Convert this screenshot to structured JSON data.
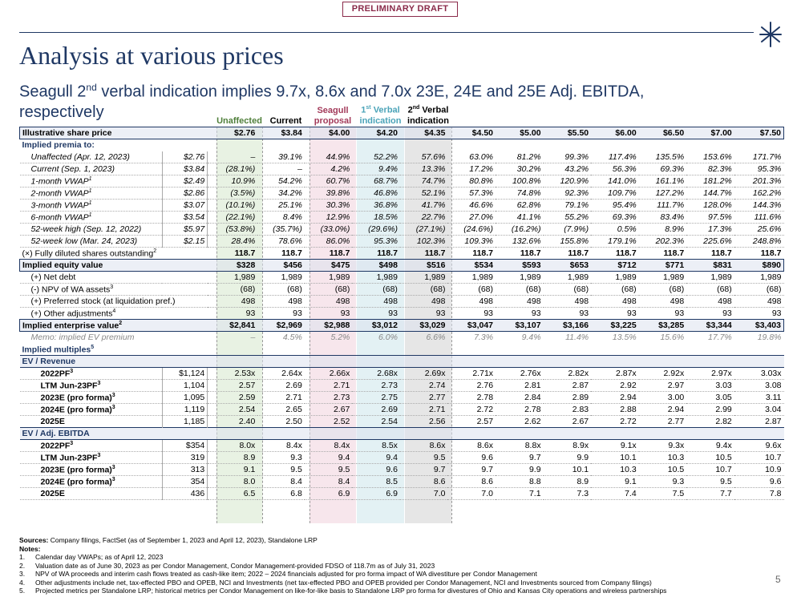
{
  "draft_label": "PRELIMINARY DRAFT",
  "title": "Analysis at various prices",
  "subtitle_pre": "Seagull 2",
  "subtitle_sup": "nd",
  "subtitle_post": " verbal indication implies 9.7x, 8.6x and 7.0x 23E, 24E and 25E Adj. EBITDA, respectively",
  "column_headers": {
    "unaffected": "Unaffected",
    "current": "Current",
    "seagull": "Seagull proposal",
    "verbal1_pre": "1",
    "verbal1_sup": "st",
    "verbal1_post": " Verbal indication",
    "verbal2_pre": "2",
    "verbal2_sup": "nd",
    "verbal2_post": " Verbal indication"
  },
  "share_price": {
    "label": "Illustrative share price",
    "values": [
      "$2.76",
      "$3.84",
      "$4.00",
      "$4.20",
      "$4.35",
      "$4.50",
      "$5.00",
      "$5.50",
      "$6.00",
      "$6.50",
      "$7.00",
      "$7.50"
    ]
  },
  "premia": {
    "section_label": "Implied premia to:",
    "rows": [
      {
        "label": "Unaffected (Apr. 12, 2023)",
        "sup": "",
        "ref": "$2.76",
        "values": [
          "–",
          "39.1%",
          "44.9%",
          "52.2%",
          "57.6%",
          "63.0%",
          "81.2%",
          "99.3%",
          "117.4%",
          "135.5%",
          "153.6%",
          "171.7%"
        ]
      },
      {
        "label": "Current (Sep. 1, 2023)",
        "sup": "",
        "ref": "$3.84",
        "values": [
          "(28.1%)",
          "–",
          "4.2%",
          "9.4%",
          "13.3%",
          "17.2%",
          "30.2%",
          "43.2%",
          "56.3%",
          "69.3%",
          "82.3%",
          "95.3%"
        ]
      },
      {
        "label": "1-month VWAP",
        "sup": "1",
        "ref": "$2.49",
        "values": [
          "10.9%",
          "54.2%",
          "60.7%",
          "68.7%",
          "74.7%",
          "80.8%",
          "100.8%",
          "120.9%",
          "141.0%",
          "161.1%",
          "181.2%",
          "201.3%"
        ]
      },
      {
        "label": "2-month VWAP",
        "sup": "1",
        "ref": "$2.86",
        "values": [
          "(3.5%)",
          "34.2%",
          "39.8%",
          "46.8%",
          "52.1%",
          "57.3%",
          "74.8%",
          "92.3%",
          "109.7%",
          "127.2%",
          "144.7%",
          "162.2%"
        ]
      },
      {
        "label": "3-month VWAP",
        "sup": "1",
        "ref": "$3.07",
        "values": [
          "(10.1%)",
          "25.1%",
          "30.3%",
          "36.8%",
          "41.7%",
          "46.6%",
          "62.8%",
          "79.1%",
          "95.4%",
          "111.7%",
          "128.0%",
          "144.3%"
        ]
      },
      {
        "label": "6-month VWAP",
        "sup": "1",
        "ref": "$3.54",
        "values": [
          "(22.1%)",
          "8.4%",
          "12.9%",
          "18.5%",
          "22.7%",
          "27.0%",
          "41.1%",
          "55.2%",
          "69.3%",
          "83.4%",
          "97.5%",
          "111.6%"
        ]
      },
      {
        "label": "52-week high (Sep. 12, 2022)",
        "sup": "",
        "ref": "$5.97",
        "values": [
          "(53.8%)",
          "(35.7%)",
          "(33.0%)",
          "(29.6%)",
          "(27.1%)",
          "(24.6%)",
          "(16.2%)",
          "(7.9%)",
          "0.5%",
          "8.9%",
          "17.3%",
          "25.6%"
        ]
      },
      {
        "label": "52-week low (Mar. 24, 2023)",
        "sup": "",
        "ref": "$2.15",
        "values": [
          "28.4%",
          "78.6%",
          "86.0%",
          "95.3%",
          "102.3%",
          "109.3%",
          "132.6%",
          "155.8%",
          "179.1%",
          "202.3%",
          "225.6%",
          "248.8%"
        ]
      }
    ]
  },
  "shares": {
    "label": "(×) Fully diluted shares outstanding",
    "sup": "2",
    "values": [
      "118.7",
      "118.7",
      "118.7",
      "118.7",
      "118.7",
      "118.7",
      "118.7",
      "118.7",
      "118.7",
      "118.7",
      "118.7",
      "118.7"
    ]
  },
  "equity_value": {
    "label": "Implied equity value",
    "values": [
      "$328",
      "$456",
      "$475",
      "$498",
      "$516",
      "$534",
      "$593",
      "$653",
      "$712",
      "$771",
      "$831",
      "$890"
    ]
  },
  "adjustments": [
    {
      "label": "(+) Net debt",
      "sup": "",
      "values": [
        "1,989",
        "1,989",
        "1,989",
        "1,989",
        "1,989",
        "1,989",
        "1,989",
        "1,989",
        "1,989",
        "1,989",
        "1,989",
        "1,989"
      ]
    },
    {
      "label": "(-)  NPV of WA assets",
      "sup": "3",
      "values": [
        "(68)",
        "(68)",
        "(68)",
        "(68)",
        "(68)",
        "(68)",
        "(68)",
        "(68)",
        "(68)",
        "(68)",
        "(68)",
        "(68)"
      ]
    },
    {
      "label": "(+) Preferred stock (at liquidation pref.)",
      "sup": "",
      "values": [
        "498",
        "498",
        "498",
        "498",
        "498",
        "498",
        "498",
        "498",
        "498",
        "498",
        "498",
        "498"
      ]
    },
    {
      "label": "(+) Other adjustments",
      "sup": "4",
      "values": [
        "93",
        "93",
        "93",
        "93",
        "93",
        "93",
        "93",
        "93",
        "93",
        "93",
        "93",
        "93"
      ]
    }
  ],
  "enterprise_value": {
    "label": "Implied enterprise value",
    "sup": "2",
    "values": [
      "$2,841",
      "$2,969",
      "$2,988",
      "$3,012",
      "$3,029",
      "$3,047",
      "$3,107",
      "$3,166",
      "$3,225",
      "$3,285",
      "$3,344",
      "$3,403"
    ]
  },
  "memo": {
    "label": "Memo: implied EV premium",
    "values": [
      "–",
      "4.5%",
      "5.2%",
      "6.0%",
      "6.6%",
      "7.3%",
      "9.4%",
      "11.4%",
      "13.5%",
      "15.6%",
      "17.7%",
      "19.8%"
    ]
  },
  "multiples_label": "Implied multiples",
  "multiples_sup": "5",
  "ev_revenue": {
    "label": "EV / Revenue",
    "rows": [
      {
        "label": "2022PF",
        "sup": "3",
        "ref": "$1,124",
        "values": [
          "2.53x",
          "2.64x",
          "2.66x",
          "2.68x",
          "2.69x",
          "2.71x",
          "2.76x",
          "2.82x",
          "2.87x",
          "2.92x",
          "2.97x",
          "3.03x"
        ]
      },
      {
        "label": "LTM Jun-23PF",
        "sup": "3",
        "ref": "1,104",
        "values": [
          "2.57",
          "2.69",
          "2.71",
          "2.73",
          "2.74",
          "2.76",
          "2.81",
          "2.87",
          "2.92",
          "2.97",
          "3.03",
          "3.08"
        ]
      },
      {
        "label": "2023E (pro forma)",
        "sup": "3",
        "ref": "1,095",
        "values": [
          "2.59",
          "2.71",
          "2.73",
          "2.75",
          "2.77",
          "2.78",
          "2.84",
          "2.89",
          "2.94",
          "3.00",
          "3.05",
          "3.11"
        ]
      },
      {
        "label": "2024E (pro forma)",
        "sup": "3",
        "ref": "1,119",
        "values": [
          "2.54",
          "2.65",
          "2.67",
          "2.69",
          "2.71",
          "2.72",
          "2.78",
          "2.83",
          "2.88",
          "2.94",
          "2.99",
          "3.04"
        ]
      },
      {
        "label": "2025E",
        "sup": "",
        "ref": "1,185",
        "values": [
          "2.40",
          "2.50",
          "2.52",
          "2.54",
          "2.56",
          "2.57",
          "2.62",
          "2.67",
          "2.72",
          "2.77",
          "2.82",
          "2.87"
        ]
      }
    ]
  },
  "ev_ebitda": {
    "label": "EV / Adj. EBITDA",
    "rows": [
      {
        "label": "2022PF",
        "sup": "3",
        "ref": "$354",
        "values": [
          "8.0x",
          "8.4x",
          "8.4x",
          "8.5x",
          "8.6x",
          "8.6x",
          "8.8x",
          "8.9x",
          "9.1x",
          "9.3x",
          "9.4x",
          "9.6x"
        ]
      },
      {
        "label": "LTM Jun-23PF",
        "sup": "3",
        "ref": "319",
        "values": [
          "8.9",
          "9.3",
          "9.4",
          "9.4",
          "9.5",
          "9.6",
          "9.7",
          "9.9",
          "10.1",
          "10.3",
          "10.5",
          "10.7"
        ]
      },
      {
        "label": "2023E (pro forma)",
        "sup": "3",
        "ref": "313",
        "values": [
          "9.1",
          "9.5",
          "9.5",
          "9.6",
          "9.7",
          "9.7",
          "9.9",
          "10.1",
          "10.3",
          "10.5",
          "10.7",
          "10.9"
        ]
      },
      {
        "label": "2024E (pro forma)",
        "sup": "3",
        "ref": "354",
        "values": [
          "8.0",
          "8.4",
          "8.4",
          "8.5",
          "8.6",
          "8.6",
          "8.8",
          "8.9",
          "9.1",
          "9.3",
          "9.5",
          "9.6"
        ]
      },
      {
        "label": "2025E",
        "sup": "",
        "ref": "436",
        "values": [
          "6.5",
          "6.8",
          "6.9",
          "6.9",
          "7.0",
          "7.0",
          "7.1",
          "7.3",
          "7.4",
          "7.5",
          "7.7",
          "7.8"
        ]
      }
    ]
  },
  "sources": {
    "label": "Sources:",
    "text": " Company filings, FactSet (as of September 1, 2023 and April 12, 2023), Standalone LRP"
  },
  "notes_label": "Notes:",
  "notes": [
    {
      "num": "1.",
      "text": "Calendar day VWAPs; as of April 12, 2023"
    },
    {
      "num": "2.",
      "text": "Valuation date as of June 30, 2023 as per Condor Management, Condor Management-provided FDSO of 118.7m as of July 31, 2023"
    },
    {
      "num": "3.",
      "text": "NPV of WA proceeds and interim cash flows treated as cash-like item; 2022 – 2024 financials adjusted for pro forma impact of WA divestiture per Condor Management"
    },
    {
      "num": "4.",
      "text": "Other adjustments include net, tax-effected PBO and OPEB, NCI and Investments (net tax-effected PBO and OPEB provided per Condor Management, NCI and Investments sourced from Company filings)"
    },
    {
      "num": "5.",
      "text": "Projected metrics per Standalone LRP; historical metrics per Condor Management on like-for-like basis to Standalone LRP pro forma for divestures of Ohio and Kansas City operations and wireless partnerships"
    }
  ],
  "page_number": "5"
}
